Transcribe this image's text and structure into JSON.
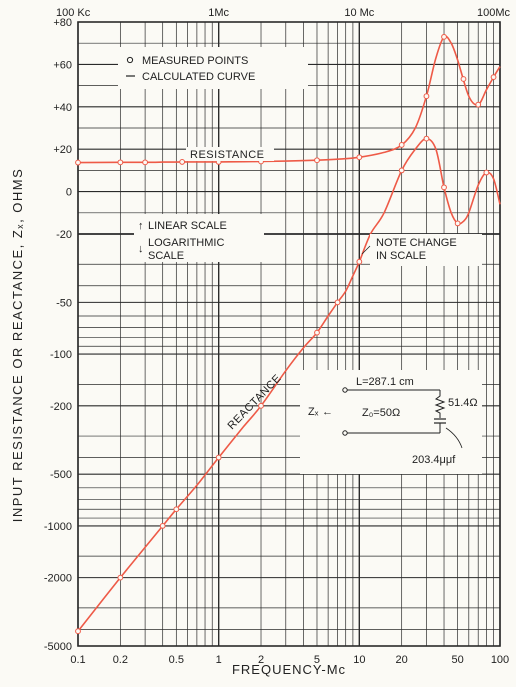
{
  "chart_data": {
    "type": "line",
    "x_scale": "log",
    "xlim": [
      0.1,
      100
    ],
    "xlabel": "FREQUENCY-Mc",
    "ylabel": "INPUT RESISTANCE OR REACTANCE, Zₓ, OHMS",
    "grid": true,
    "x_ticks_bottom": [
      "0.1",
      "0.2",
      "0.5",
      "1",
      "2",
      "5",
      "10",
      "20",
      "50",
      "100"
    ],
    "x_ticks_top": [
      "100 Kc",
      "1Mc",
      "10 Mc",
      "100Mc"
    ],
    "y_ticks_linear": [
      "+80",
      "+60",
      "+40",
      "+20",
      "0",
      "-20"
    ],
    "y_ticks_log": [
      "-50",
      "-100",
      "-200",
      "-500",
      "-1000",
      "-2000",
      "-5000"
    ],
    "y_scale_note": "linear above -20, logarithmic below",
    "scale_labels": {
      "linear": "LINEAR SCALE",
      "log": "LOGARITHMIC SCALE"
    },
    "legend": {
      "measured": "MEASURED POINTS",
      "calculated": "CALCULATED CURVE"
    },
    "annotations": {
      "resistance": "RESISTANCE",
      "reactance": "REACTANCE",
      "note": "NOTE CHANGE IN SCALE"
    },
    "inset_circuit": {
      "length": "L=287.1 cm",
      "z0": "Z₀=50Ω",
      "zx": "Zₓ",
      "resistor": "51.4Ω",
      "capacitor": "203.4μμf"
    },
    "series": [
      {
        "name": "RESISTANCE",
        "x": [
          0.1,
          0.2,
          0.3,
          0.4,
          0.55,
          0.7,
          1,
          1.5,
          2,
          3,
          5,
          7,
          10,
          15,
          20,
          25,
          30,
          35,
          40,
          45,
          50,
          60,
          70,
          80,
          90,
          100
        ],
        "y": [
          13.7,
          13.8,
          13.8,
          13.9,
          14,
          14,
          14,
          14.1,
          14.2,
          14.4,
          14.8,
          15.3,
          16.2,
          18.5,
          22,
          30,
          45,
          63,
          73,
          70,
          62,
          45,
          41,
          48,
          54,
          59
        ]
      },
      {
        "name": "REACTANCE",
        "x": [
          0.1,
          0.2,
          0.4,
          0.5,
          0.7,
          1,
          1.5,
          2,
          3,
          4,
          5,
          6,
          7,
          8,
          9,
          10,
          12,
          15,
          20,
          25,
          30,
          35,
          40,
          45,
          50,
          55,
          60,
          70,
          80,
          90,
          100
        ],
        "y": [
          -4100,
          -2000,
          -1000,
          -800,
          -580,
          -400,
          -265,
          -200,
          -125,
          -92,
          -75,
          -60,
          -50,
          -43,
          -35,
          -29,
          -20,
          -10,
          10,
          20,
          25,
          20,
          2,
          -10,
          -15,
          -14,
          -10,
          3,
          9,
          6,
          -6
        ]
      }
    ],
    "measured_points": {
      "resistance_x": [
        0.1,
        0.2,
        0.3,
        0.55,
        1,
        2,
        5,
        10,
        20,
        30,
        40,
        55,
        70,
        90
      ],
      "reactance_x": [
        0.1,
        0.2,
        0.4,
        0.5,
        1,
        2,
        5,
        7,
        10,
        20,
        30,
        40,
        50,
        80
      ]
    },
    "colors": {
      "curve": "#ee5a47",
      "grid": "#2a2a2a",
      "background": "#fbfaf5"
    }
  }
}
